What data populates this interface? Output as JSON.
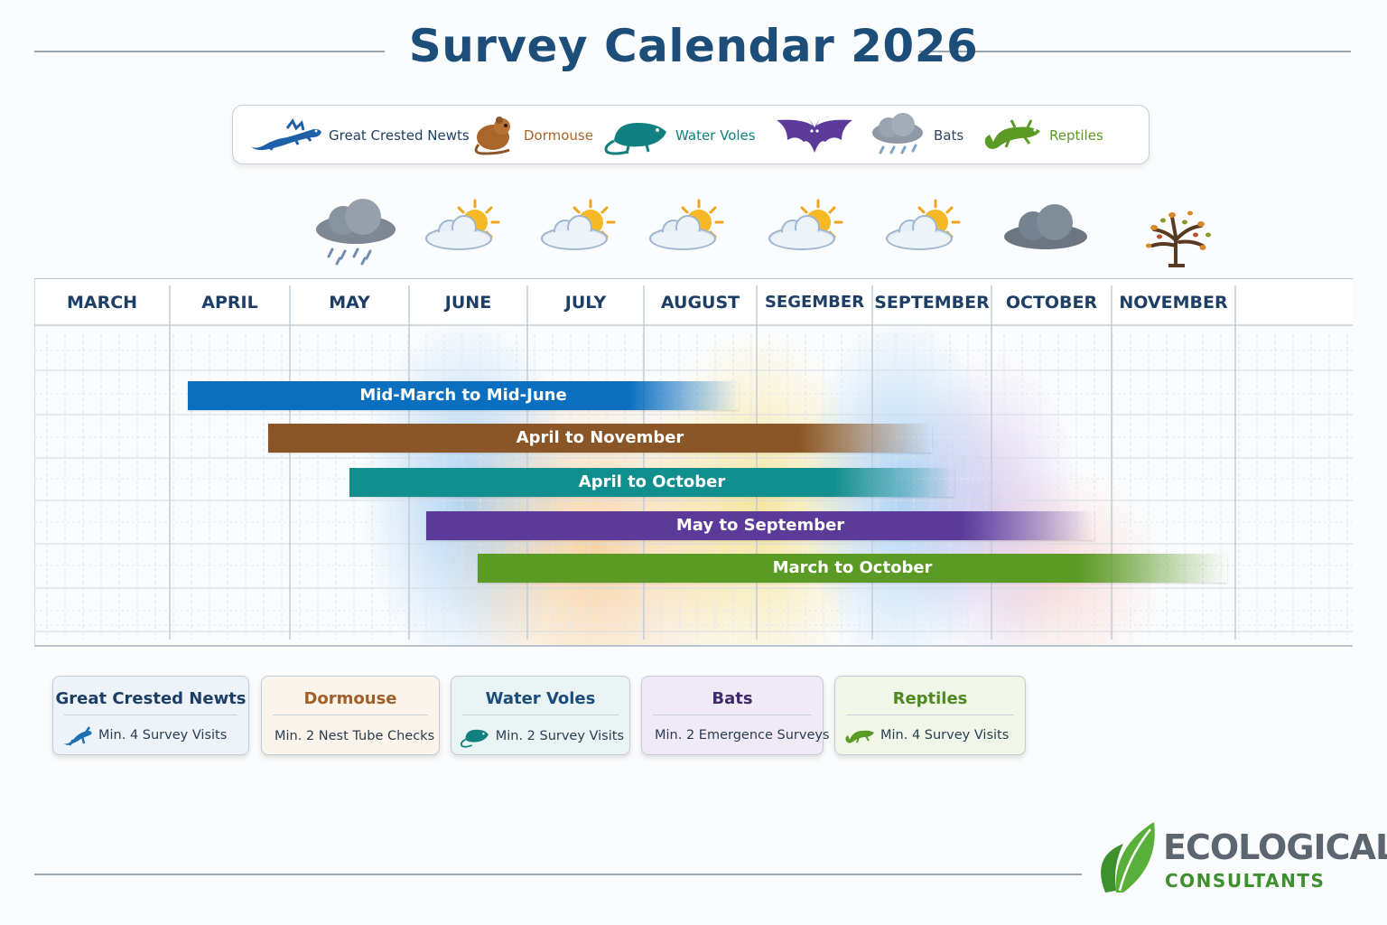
{
  "title": "Survey Calendar 2026",
  "colors": {
    "newts": "#0b6fc0",
    "dormouse": "#8a5628",
    "voles": "#118e8e",
    "bats": "#5b3a9a",
    "reptiles": "#5a9a25",
    "title": "#1d4e7a"
  },
  "legend": [
    {
      "label": "Great Crested Newts",
      "icon": "newt-icon",
      "color": "#1d5fa8"
    },
    {
      "label": "Dormouse",
      "icon": "dormouse-icon",
      "color": "#a9662b"
    },
    {
      "label": "Water Voles",
      "icon": "water-vole-icon",
      "color": "#118080"
    },
    {
      "label": "Bats",
      "icon": "rain-cloud-icon",
      "color": "#2a4660"
    },
    {
      "label": "Reptiles",
      "icon": "lizard-icon",
      "color": "#5a9a25"
    }
  ],
  "weather": [
    "rain-cloud-icon",
    "partly-sunny-icon",
    "partly-sunny-icon",
    "partly-sunny-icon",
    "partly-sunny-icon",
    "partly-sunny-icon",
    "grey-cloud-icon",
    "autumn-tree-icon"
  ],
  "months": [
    "MARCH",
    "APRIL",
    "MAY",
    "JUNE",
    "JULY",
    "AUGUST",
    "SEGEMBER",
    "SEPTEMBER",
    "OCTOBER",
    "NOVEMBER"
  ],
  "bars": [
    {
      "label": "Mid-March to Mid-June",
      "color": "#0b6fc0"
    },
    {
      "label": "April to November",
      "color": "#8a5628"
    },
    {
      "label": "April to October",
      "color": "#118e8e"
    },
    {
      "label": "May to September",
      "color": "#5b3a9a"
    },
    {
      "label": "March to October",
      "color": "#5a9a25"
    }
  ],
  "cards": [
    {
      "title": "Great Crested Newts",
      "text": "Min. 4 Survey Visits",
      "icon": "newt-icon",
      "color": "#1d5fa8"
    },
    {
      "title": "Dormouse",
      "text": "Min. 2 Nest Tube Checks",
      "icon": "dormouse-icon",
      "color": "#a9662b"
    },
    {
      "title": "Water Voles",
      "text": "Min. 2 Survey Visits",
      "icon": "water-vole-icon",
      "color": "#1d5f86"
    },
    {
      "title": "Bats",
      "text": "Min. 2 Emergence Surveys",
      "icon": "bat-icon",
      "color": "#4a2f7a"
    },
    {
      "title": "Reptiles",
      "text": "Min. 4 Survey Visits",
      "icon": "lizard-icon",
      "color": "#4f8a20"
    }
  ],
  "brand": {
    "line1": "ECOLOGICAL",
    "line2": "CONSULTANTS"
  }
}
